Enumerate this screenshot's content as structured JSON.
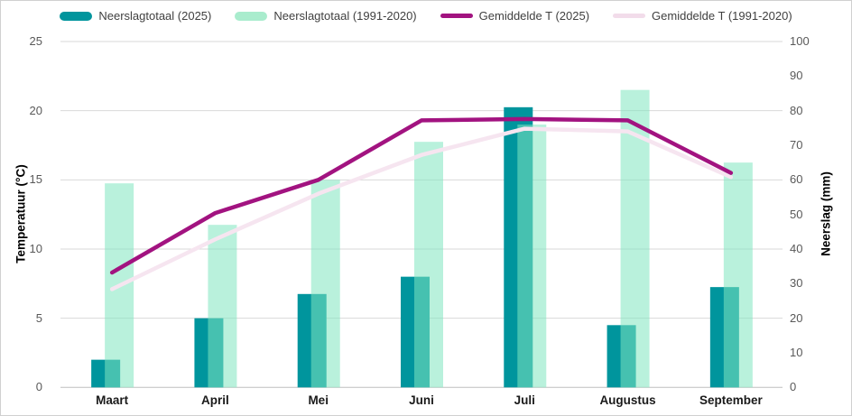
{
  "chart": {
    "background": "#ffffff",
    "frame_color": "#d0d0d0",
    "gridline_color": "#d9d9d9",
    "axis_line_color": "#bfbfbf",
    "tick_label_color": "#595959",
    "category_label_color": "#1a1a1a",
    "legend_text_color": "#404040"
  },
  "y_left": {
    "title": "Temperatuur (°C)",
    "min": 0,
    "max": 25,
    "ticks": [
      0,
      5,
      10,
      15,
      20,
      25
    ]
  },
  "y_right": {
    "title": "Neerslag (mm)",
    "min": 0,
    "max": 100,
    "ticks": [
      0,
      10,
      20,
      30,
      40,
      50,
      60,
      70,
      80,
      90,
      100
    ]
  },
  "chart_data": {
    "type": "combo-bar-line",
    "categories": [
      "Maart",
      "April",
      "Mei",
      "Juni",
      "Juli",
      "Augustus",
      "September"
    ],
    "series": [
      {
        "name": "Neerslagtotaal (2025)",
        "type": "bar",
        "axis": "right",
        "unit": "mm",
        "color": "#00959D",
        "legend_color": "#00959D",
        "values": [
          8,
          20,
          27,
          32,
          81,
          18,
          29
        ]
      },
      {
        "name": "Neerslagtotaal (1991-2020)",
        "type": "bar",
        "axis": "right",
        "unit": "mm",
        "color": "rgba(128,230,191,0.55)",
        "legend_color": "#A9ECCD",
        "values": [
          59,
          47,
          60,
          71,
          76,
          86,
          65
        ]
      },
      {
        "name": "Gemiddelde T (2025)",
        "type": "line",
        "axis": "left",
        "unit": "°C",
        "color": "#A21380",
        "legend_color": "#A21380",
        "values": [
          8.3,
          12.6,
          15.0,
          19.3,
          19.4,
          19.3,
          15.5
        ]
      },
      {
        "name": "Gemiddelde T (1991-2020)",
        "type": "line",
        "axis": "left",
        "unit": "°C",
        "color": "#F6E5F0",
        "legend_color": "#F2DCEA",
        "values": [
          7.1,
          10.7,
          14.0,
          16.8,
          18.7,
          18.5,
          15.2
        ]
      }
    ],
    "ylim_left": [
      0,
      25
    ],
    "ylim_right": [
      0,
      100
    ],
    "grid": true,
    "legend_position": "top"
  }
}
